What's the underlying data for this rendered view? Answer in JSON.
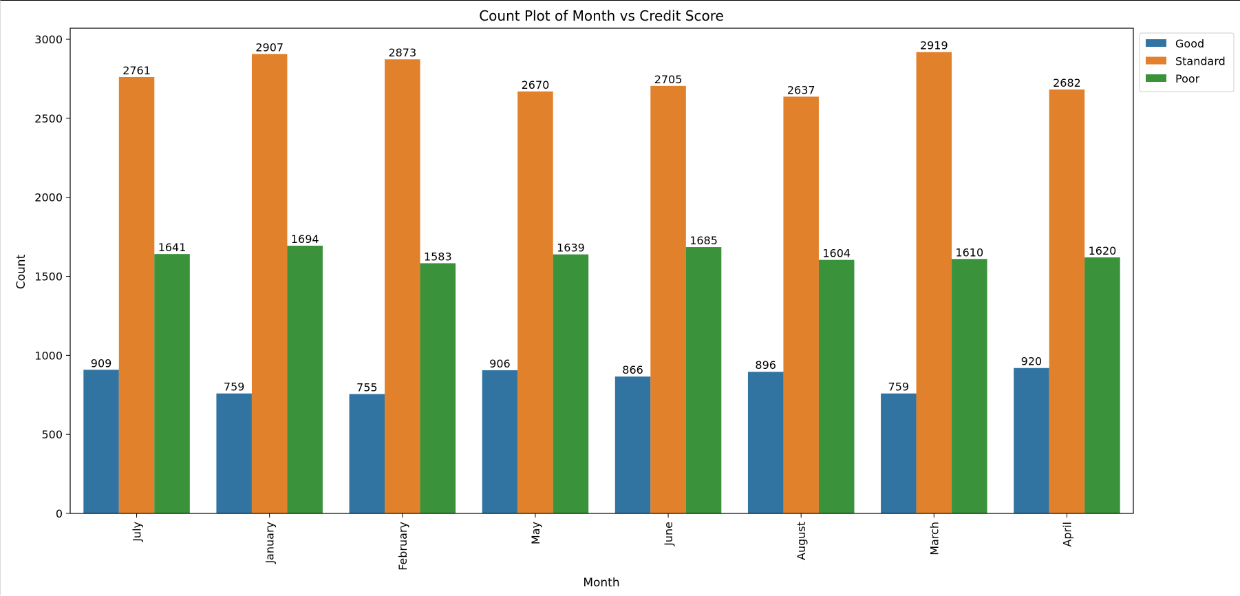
{
  "chart_data": {
    "type": "bar",
    "title": "Count Plot of Month vs Credit Score",
    "xlabel": "Month",
    "ylabel": "Count",
    "categories": [
      "July",
      "January",
      "February",
      "May",
      "June",
      "August",
      "March",
      "April"
    ],
    "series": [
      {
        "name": "Good",
        "color": "#3274a1",
        "values": [
          909,
          759,
          755,
          906,
          866,
          896,
          759,
          920
        ]
      },
      {
        "name": "Standard",
        "color": "#e1812c",
        "values": [
          2761,
          2907,
          2873,
          2670,
          2705,
          2637,
          2919,
          2682
        ]
      },
      {
        "name": "Poor",
        "color": "#3a923a",
        "values": [
          1641,
          1694,
          1583,
          1639,
          1685,
          1604,
          1610,
          1620
        ]
      }
    ],
    "yticks": [
      0,
      500,
      1000,
      1500,
      2000,
      2500,
      3000
    ],
    "ylim": [
      0,
      3070
    ],
    "grid": false,
    "legend": "outside-top-right",
    "data_labels": true
  }
}
